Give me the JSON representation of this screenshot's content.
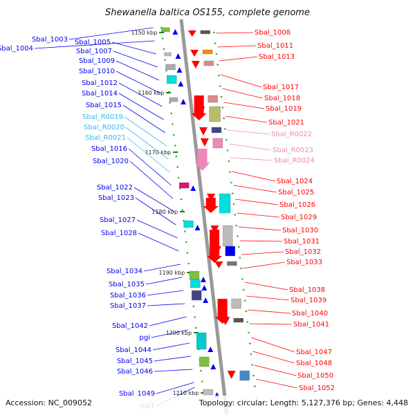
{
  "title": "Shewanella baltica OS155, complete genome",
  "footer": {
    "accession": "Accession: NC_009052",
    "summary": "Topology: circular; Length: 5,127,376 bp; Genes: 4,448"
  },
  "colors": {
    "forward": "#0000ee",
    "reverse": "#ff0000",
    "rna_forward": "#33bbee",
    "rna_reverse": "#ee88bb",
    "tick": "#008800",
    "backbone": "#999999"
  },
  "ticks": [
    "1150 kbp",
    "1160 kbp",
    "1170 kbp",
    "1180 kbp",
    "1190 kbp",
    "1200 kbp",
    "1210 kbp"
  ],
  "left_genes": [
    {
      "label": "Sbal_1003",
      "kind": "cds"
    },
    {
      "label": "Sbal_1004",
      "kind": "cds"
    },
    {
      "label": "Sbal_1005",
      "kind": "cds"
    },
    {
      "label": "Sbal_1007",
      "kind": "cds"
    },
    {
      "label": "Sbal_1009",
      "kind": "cds"
    },
    {
      "label": "Sbal_1010",
      "kind": "cds"
    },
    {
      "label": "Sbal_1012",
      "kind": "cds"
    },
    {
      "label": "Sbal_1014",
      "kind": "cds"
    },
    {
      "label": "Sbal_1015",
      "kind": "cds"
    },
    {
      "label": "Sbal_R0019",
      "kind": "rna"
    },
    {
      "label": "Sbal_R0020",
      "kind": "rna"
    },
    {
      "label": "Sbal_R0021",
      "kind": "rna"
    },
    {
      "label": "Sbal_1016",
      "kind": "cds"
    },
    {
      "label": "Sbal_1020",
      "kind": "cds"
    },
    {
      "label": "Sbal_1022",
      "kind": "cds"
    },
    {
      "label": "Sbal_1023",
      "kind": "cds"
    },
    {
      "label": "Sbal_1027",
      "kind": "cds"
    },
    {
      "label": "Sbal_1028",
      "kind": "cds"
    },
    {
      "label": "Sbal_1034",
      "kind": "cds"
    },
    {
      "label": "Sbal_1035",
      "kind": "cds"
    },
    {
      "label": "Sbal_1036",
      "kind": "cds"
    },
    {
      "label": "Sbal_1037",
      "kind": "cds"
    },
    {
      "label": "Sbal_1042",
      "kind": "cds"
    },
    {
      "label": "pgi",
      "kind": "cds"
    },
    {
      "label": "Sbal_1044",
      "kind": "cds"
    },
    {
      "label": "Sbal_1045",
      "kind": "cds"
    },
    {
      "label": "Sbal_1046",
      "kind": "cds"
    },
    {
      "label": "Sbal_1049",
      "kind": "cds"
    },
    {
      "label": "rpsT",
      "kind": "cds"
    }
  ],
  "right_genes": [
    {
      "label": "Sbal_1008",
      "kind": "cds"
    },
    {
      "label": "Sbal_1011",
      "kind": "cds"
    },
    {
      "label": "Sbal_1013",
      "kind": "cds"
    },
    {
      "label": "Sbal_1017",
      "kind": "cds"
    },
    {
      "label": "Sbal_1018",
      "kind": "cds"
    },
    {
      "label": "Sbal_1019",
      "kind": "cds"
    },
    {
      "label": "Sbal_1021",
      "kind": "cds"
    },
    {
      "label": "Sbal_R0022",
      "kind": "rna"
    },
    {
      "label": "Sbal_R0023",
      "kind": "rna"
    },
    {
      "label": "Sbal_R0024",
      "kind": "rna"
    },
    {
      "label": "Sbal_1024",
      "kind": "cds"
    },
    {
      "label": "Sbal_1025",
      "kind": "cds"
    },
    {
      "label": "Sbal_1026",
      "kind": "cds"
    },
    {
      "label": "Sbal_1029",
      "kind": "cds"
    },
    {
      "label": "Sbal_1030",
      "kind": "cds"
    },
    {
      "label": "Sbal_1031",
      "kind": "cds"
    },
    {
      "label": "Sbal_1032",
      "kind": "cds"
    },
    {
      "label": "Sbal_1033",
      "kind": "cds"
    },
    {
      "label": "Sbal_1038",
      "kind": "cds"
    },
    {
      "label": "Sbal_1039",
      "kind": "cds"
    },
    {
      "label": "Sbal_1040",
      "kind": "cds"
    },
    {
      "label": "Sbal_1041",
      "kind": "cds"
    },
    {
      "label": "Sbal_1047",
      "kind": "cds"
    },
    {
      "label": "Sbal_1048",
      "kind": "cds"
    },
    {
      "label": "Sbal_1050",
      "kind": "cds"
    },
    {
      "label": "Sbal_1052",
      "kind": "cds"
    }
  ]
}
